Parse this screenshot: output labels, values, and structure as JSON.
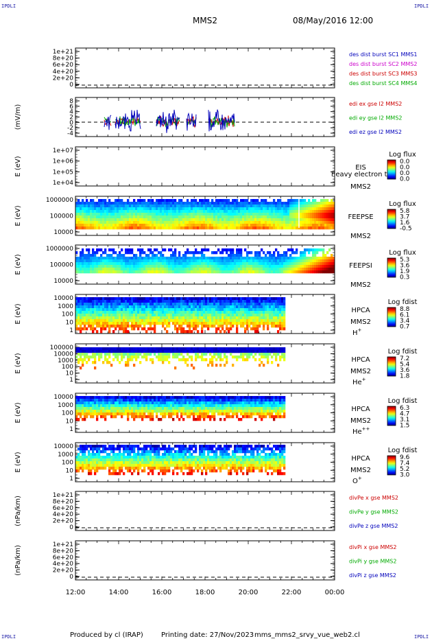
{
  "header": {
    "corner_left_top": "IPDLI",
    "corner_right_top": "IPDLI",
    "corner_left_bottom": "IPDLI",
    "corner_right_bottom": "IPDLI",
    "spacecraft": "MMS2",
    "datetime": "08/May/2016 12:00"
  },
  "footer": {
    "produced_by": "Produced by cl (IRAP)",
    "printing_date": "Printing date: 27/Nov/2023",
    "script": "mms_mms2_srvy_vue_web2.cl"
  },
  "chart_data": {
    "type": "heatmap",
    "x_ticks": [
      "12:00",
      "14:00",
      "16:00",
      "18:00",
      "20:00",
      "22:00",
      "00:00"
    ],
    "x_range_hours": [
      12,
      24
    ],
    "panels": [
      {
        "id": "p1",
        "ylabel": "",
        "y_ticks": [
          "1e+21",
          "8e+20",
          "6e+20",
          "4e+20",
          "2e+20",
          "0"
        ],
        "legend": [
          {
            "text": "des dist burst SC1 MMS1",
            "color": "#0000bb"
          },
          {
            "text": "des dist burst SC2 MMS2",
            "color": "#cc00cc"
          },
          {
            "text": "des dist burst SC3 MMS3",
            "color": "#cc0000"
          },
          {
            "text": "des dist burst SC4 MMS4",
            "color": "#00aa00"
          }
        ]
      },
      {
        "id": "p2",
        "ylabel": "(mV/m)",
        "y_ticks": [
          "8",
          "6",
          "4",
          "2",
          "0",
          "-2",
          "-4"
        ],
        "legend": [
          {
            "text": "edi ex gse l2 MMS2",
            "color": "#cc0000"
          },
          {
            "text": "edi ey gse l2 MMS2",
            "color": "#00aa00"
          },
          {
            "text": "edi ez gse l2 MMS2",
            "color": "#0000bb"
          }
        ]
      },
      {
        "id": "p3",
        "ylabel": "E (eV)",
        "y_ticks": [
          "1e+07",
          "1e+06",
          "1e+05",
          "1e+04"
        ],
        "labels": [
          "EIS",
          "MMS2"
        ],
        "note": "heavy electron tof",
        "cbar_title": "Log flux",
        "cbar_ticks": [
          "0.0",
          "0.0",
          "0.0",
          "0.0"
        ]
      },
      {
        "id": "p4",
        "ylabel": "E (eV)",
        "y_ticks": [
          "1000000",
          "100000",
          "10000"
        ],
        "labels": [
          "FEEPSE",
          "MMS2"
        ],
        "cbar_title": "Log flux",
        "cbar_ticks": [
          "5.8",
          "3.7",
          "1.6",
          "-0.5"
        ]
      },
      {
        "id": "p5",
        "ylabel": "E (eV)",
        "y_ticks": [
          "1000000",
          "100000",
          "10000"
        ],
        "labels": [
          "FEEPSI",
          "MMS2"
        ],
        "cbar_title": "Log flux",
        "cbar_ticks": [
          "5.3",
          "3.6",
          "1.9",
          "0.3"
        ]
      },
      {
        "id": "p6",
        "ylabel": "E (eV)",
        "y_ticks": [
          "10000",
          "1000",
          "100",
          "10",
          "1"
        ],
        "labels": [
          "HPCA",
          "MMS2"
        ],
        "species": "H",
        "species_sup": "+",
        "cbar_title": "Log fdist",
        "cbar_ticks": [
          "8.8",
          "6.1",
          "3.4",
          "0.7"
        ]
      },
      {
        "id": "p7",
        "ylabel": "E (eV)",
        "y_ticks": [
          "100000",
          "10000",
          "1000",
          "100",
          "10",
          "1"
        ],
        "labels": [
          "HPCA",
          "MMS2"
        ],
        "species": "He",
        "species_sup": "+",
        "cbar_title": "Log fdist",
        "cbar_ticks": [
          "7.2",
          "5.4",
          "3.6",
          "1.8"
        ]
      },
      {
        "id": "p8",
        "ylabel": "E (eV)",
        "y_ticks": [
          "10000",
          "1000",
          "100",
          "10",
          "1"
        ],
        "labels": [
          "HPCA",
          "MMS2"
        ],
        "species": "He",
        "species_sup": "++",
        "cbar_title": "Log fdist",
        "cbar_ticks": [
          "6.3",
          "4.7",
          "3.1",
          "1.5"
        ]
      },
      {
        "id": "p9",
        "ylabel": "E (eV)",
        "y_ticks": [
          "10000",
          "1000",
          "100",
          "10",
          "1"
        ],
        "labels": [
          "HPCA",
          "MMS2"
        ],
        "species": "O",
        "species_sup": "+",
        "cbar_title": "Log fdist",
        "cbar_ticks": [
          "9.6",
          "7.4",
          "5.2",
          "3.0"
        ]
      },
      {
        "id": "p10",
        "ylabel": "(nPa/km)",
        "y_ticks": [
          "1e+21",
          "8e+20",
          "6e+20",
          "4e+20",
          "2e+20",
          "0"
        ],
        "legend": [
          {
            "text": "divPe x gse MMS2",
            "color": "#cc0000"
          },
          {
            "text": "divPe y gse MMS2",
            "color": "#00aa00"
          },
          {
            "text": "divPe z gse MMS2",
            "color": "#0000bb"
          }
        ]
      },
      {
        "id": "p11",
        "ylabel": "(nPa/km)",
        "y_ticks": [
          "1e+21",
          "8e+20",
          "6e+20",
          "4e+20",
          "2e+20",
          "0"
        ],
        "legend": [
          {
            "text": "divPi x gse MMS2",
            "color": "#cc0000"
          },
          {
            "text": "divPi y gse MMS2",
            "color": "#00aa00"
          },
          {
            "text": "divPi z gse MMS2",
            "color": "#0000bb"
          }
        ]
      }
    ]
  }
}
